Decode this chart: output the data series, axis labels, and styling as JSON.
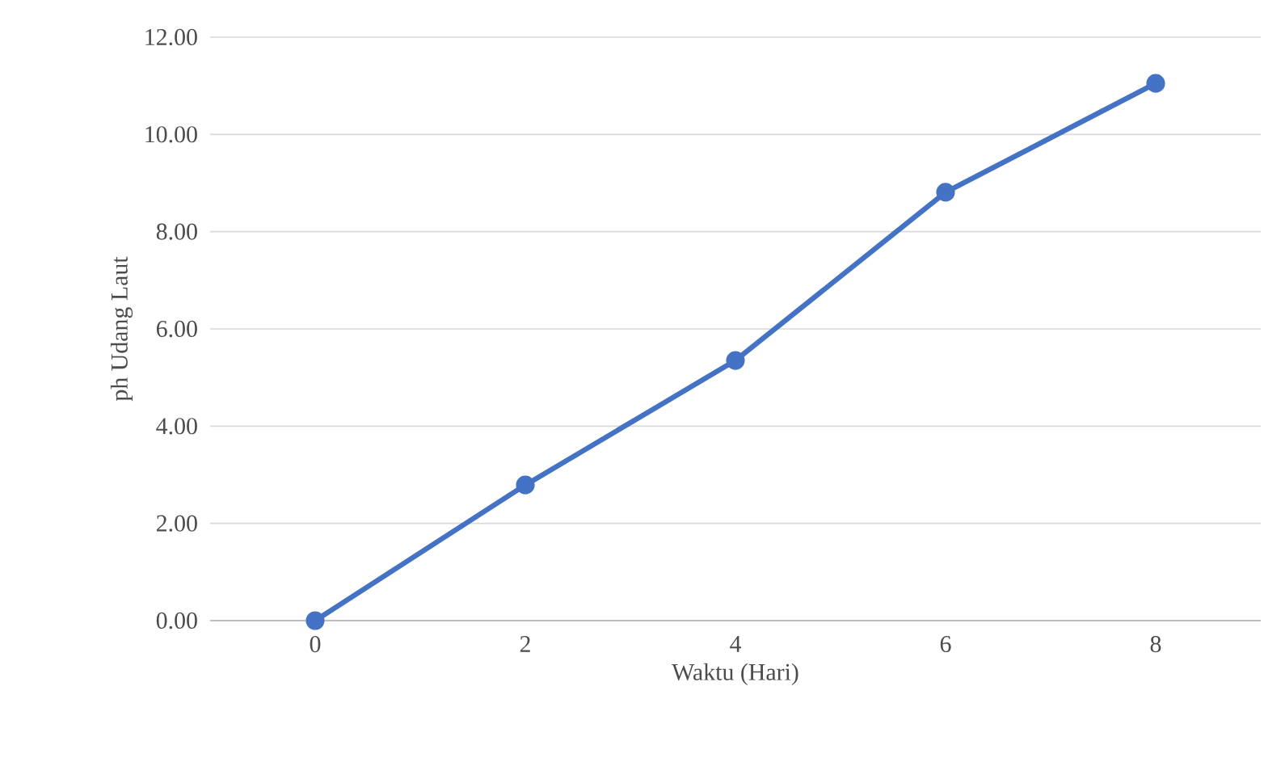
{
  "chart_data": {
    "type": "line",
    "xlabel": "Waktu (Hari)",
    "ylabel": "ph Udang Laut",
    "categories": [
      "0",
      "2",
      "4",
      "6",
      "8"
    ],
    "series": [
      {
        "color": "#4472c4",
        "values": [
          0,
          2.79,
          5.35,
          8.81,
          11.05
        ]
      }
    ],
    "ylim": [
      0,
      12
    ],
    "yticks": [
      {
        "value": 0,
        "label": "0.00"
      },
      {
        "value": 2,
        "label": "2.00"
      },
      {
        "value": 4,
        "label": "4.00"
      },
      {
        "value": 6,
        "label": "6.00"
      },
      {
        "value": 8,
        "label": "8.00"
      },
      {
        "value": 10,
        "label": "10.00"
      },
      {
        "value": 12,
        "label": "12.00"
      }
    ],
    "grid": "y",
    "marker": "circle",
    "line_style": "solid"
  }
}
